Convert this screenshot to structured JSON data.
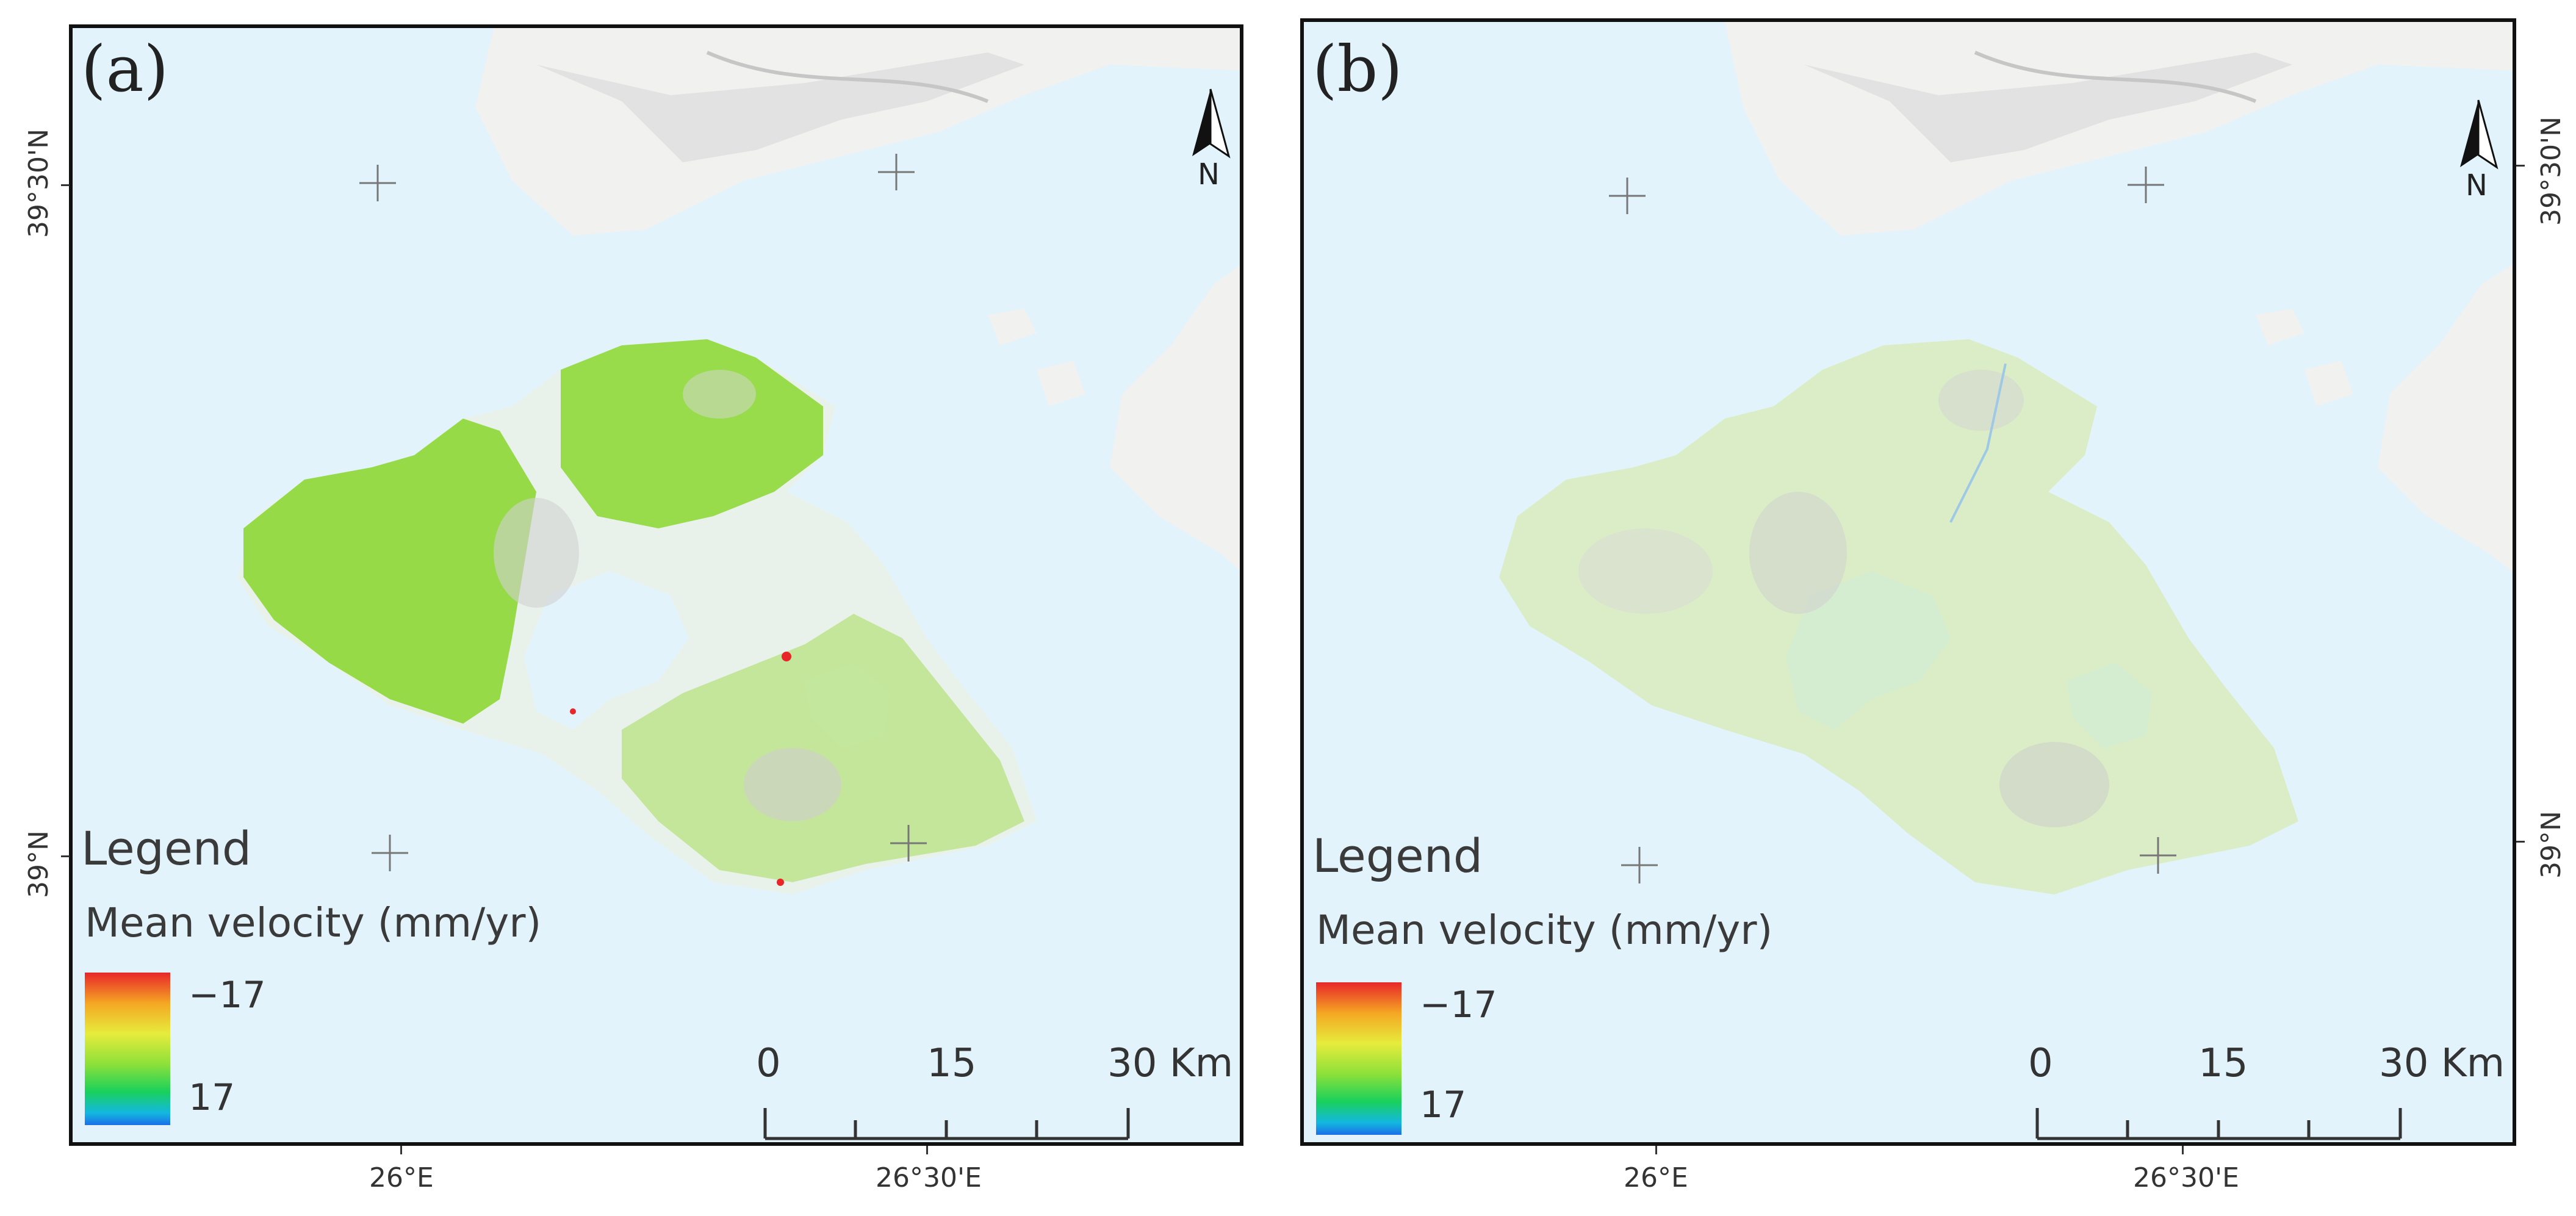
{
  "panels": [
    {
      "id": "a",
      "label": "(a)",
      "legend_title": "Legend",
      "legend_subtitle": "Mean velocity (mm/yr)",
      "ramp_top_label": "−17",
      "ramp_bottom_label": "17",
      "scale_labels": [
        "0",
        "15",
        "30 Km"
      ],
      "north_label": "N",
      "lat_labels": [
        "39°30'N",
        "39°N"
      ],
      "lon_labels": [
        "26°E",
        "26°30'E"
      ],
      "point_style": "dense"
    },
    {
      "id": "b",
      "label": "(b)",
      "legend_title": "Legend",
      "legend_subtitle": "Mean velocity (mm/yr)",
      "ramp_top_label": "−17",
      "ramp_bottom_label": "17",
      "scale_labels": [
        "0",
        "15",
        "30 Km"
      ],
      "north_label": "N",
      "lat_labels": [
        "39°30'N",
        "39°N"
      ],
      "lon_labels": [
        "26°E",
        "26°30'E"
      ],
      "point_style": "sparse"
    }
  ],
  "colors": {
    "sea": "#e2f3fb",
    "land": "#f1f1f0",
    "relief": "#cfcfcf",
    "dense_points": "#86d63a",
    "sparse_points": "#bfe59a",
    "ramp_high": "#e8262a",
    "ramp_low": "#1c6ee8"
  }
}
